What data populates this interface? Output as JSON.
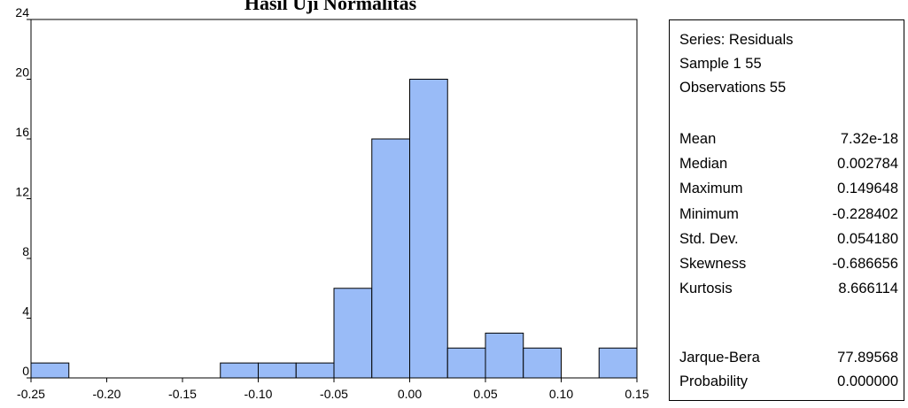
{
  "chart_data": {
    "type": "bar",
    "title": "Hasil Uji Normalitas",
    "x_ticks": [
      "-0.25",
      "-0.20",
      "-0.15",
      "-0.10",
      "-0.05",
      "0.00",
      "0.05",
      "0.10",
      "0.15"
    ],
    "x_tick_values": [
      -0.25,
      -0.2,
      -0.15,
      -0.1,
      -0.05,
      0.0,
      0.05,
      0.1,
      0.15
    ],
    "y_ticks": [
      "0",
      "4",
      "8",
      "12",
      "16",
      "20",
      "24"
    ],
    "y_tick_values": [
      0,
      4,
      8,
      12,
      16,
      20,
      24
    ],
    "xlim": [
      -0.25,
      0.15
    ],
    "ylim": [
      0,
      24
    ],
    "bin_width": 0.025,
    "bins": [
      {
        "start": -0.25,
        "count": 1
      },
      {
        "start": -0.225,
        "count": 0
      },
      {
        "start": -0.2,
        "count": 0
      },
      {
        "start": -0.175,
        "count": 0
      },
      {
        "start": -0.15,
        "count": 0
      },
      {
        "start": -0.125,
        "count": 1
      },
      {
        "start": -0.1,
        "count": 1
      },
      {
        "start": -0.075,
        "count": 1
      },
      {
        "start": -0.05,
        "count": 6
      },
      {
        "start": -0.025,
        "count": 16
      },
      {
        "start": 0.0,
        "count": 20
      },
      {
        "start": 0.025,
        "count": 2
      },
      {
        "start": 0.05,
        "count": 3
      },
      {
        "start": 0.075,
        "count": 2
      },
      {
        "start": 0.1,
        "count": 0
      },
      {
        "start": 0.125,
        "count": 2
      }
    ],
    "bar_color": "#99bbf7",
    "grid": false
  },
  "stats": {
    "series": "Series: Residuals",
    "sample": "Sample 1 55",
    "observations": "Observations 55",
    "rows": [
      {
        "label": "Mean",
        "value": "7.32e-18"
      },
      {
        "label": "Median",
        "value": "0.002784"
      },
      {
        "label": "Maximum",
        "value": "0.149648"
      },
      {
        "label": "Minimum",
        "value": "-0.228402"
      },
      {
        "label": "Std. Dev.",
        "value": "0.054180"
      },
      {
        "label": "Skewness",
        "value": "-0.686656"
      },
      {
        "label": "Kurtosis",
        "value": "8.666114"
      }
    ],
    "test_rows": [
      {
        "label": "Jarque-Bera",
        "value": "77.89568"
      },
      {
        "label": "Probability",
        "value": "0.000000"
      }
    ]
  }
}
